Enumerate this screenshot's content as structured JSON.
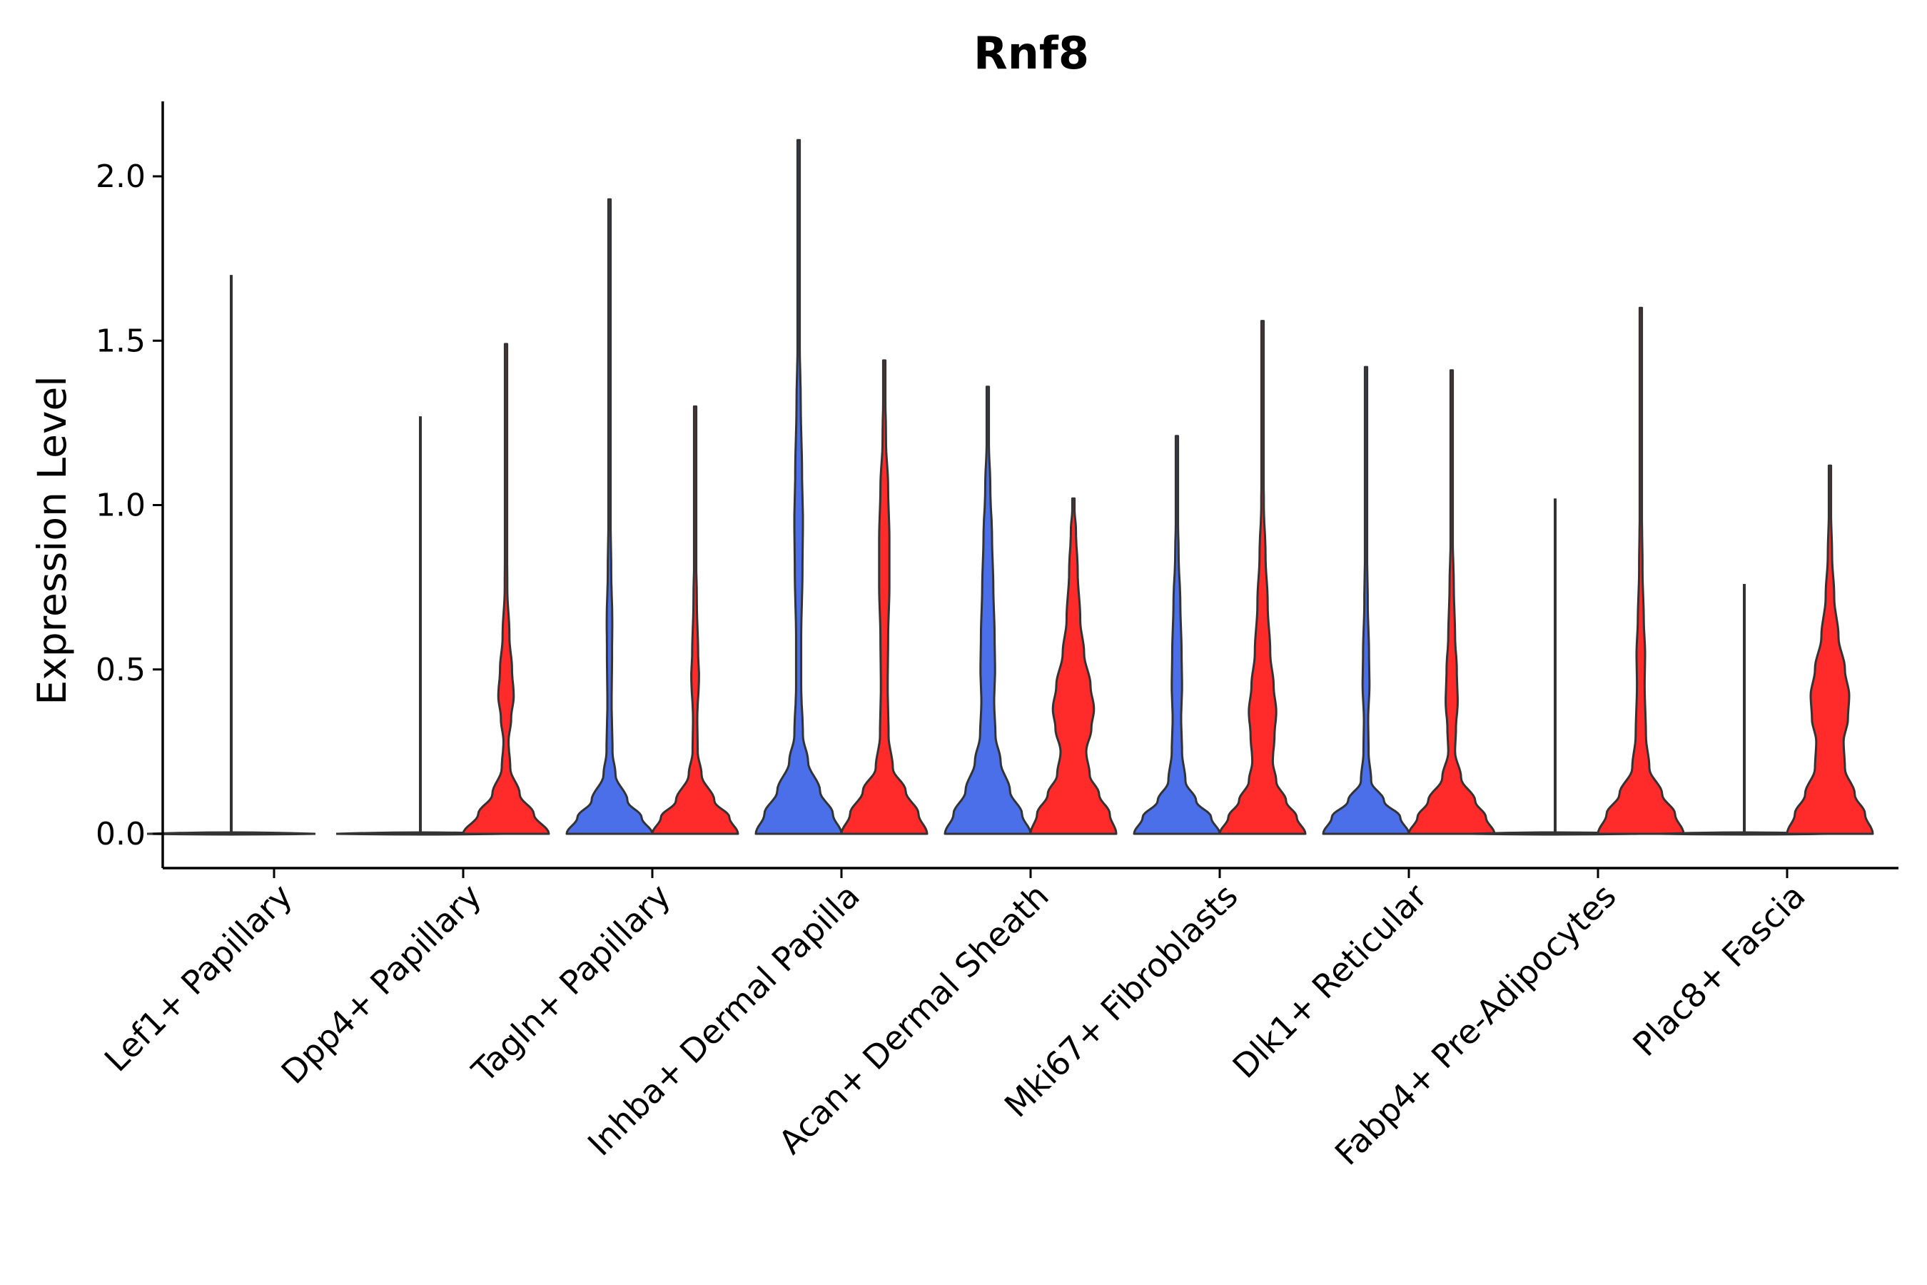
{
  "chart_data": {
    "type": "violin",
    "title": "Rnf8",
    "xlabel": "",
    "ylabel": "Expression Level",
    "ylim": [
      -0.105,
      2.22
    ],
    "yticks": [
      "0.0",
      "0.5",
      "1.0",
      "1.5",
      "2.0"
    ],
    "legend": "none",
    "series_colors": {
      "group1": "#4a6fe8",
      "group2": "#ff2a2a"
    },
    "categories": [
      "Lef1+ Papillary",
      "Dpp4+ Papillary",
      "Tagln+ Papillary",
      "Inhba+ Dermal Papilla",
      "Acan+ Dermal Sheath",
      "Mki67+ Fibroblasts",
      "Dlk1+ Reticular",
      "Fabp4+ Pre-Adipocytes",
      "Plac8+ Fascia"
    ],
    "violins": [
      {
        "category": "Lef1+ Papillary",
        "group": "group1",
        "max": 1.7,
        "flat": true
      },
      {
        "category": "Dpp4+ Papillary",
        "group": "group1",
        "max": 1.27,
        "flat": true
      },
      {
        "category": "Dpp4+ Papillary",
        "group": "group2",
        "max": 1.49,
        "profile": [
          [
            0,
            1.0
          ],
          [
            0.06,
            0.65
          ],
          [
            0.12,
            0.32
          ],
          [
            0.2,
            0.1
          ],
          [
            0.28,
            0.06
          ],
          [
            0.35,
            0.12
          ],
          [
            0.42,
            0.18
          ],
          [
            0.5,
            0.14
          ],
          [
            0.6,
            0.08
          ],
          [
            0.75,
            0.03
          ],
          [
            0.95,
            0.015
          ],
          [
            1.2,
            0.006
          ],
          [
            1.49,
            0.003
          ]
        ]
      },
      {
        "category": "Tagln+ Papillary",
        "group": "group1",
        "max": 1.93,
        "profile": [
          [
            0,
            1.0
          ],
          [
            0.05,
            0.75
          ],
          [
            0.1,
            0.42
          ],
          [
            0.18,
            0.14
          ],
          [
            0.25,
            0.07
          ],
          [
            0.4,
            0.05
          ],
          [
            0.55,
            0.06
          ],
          [
            0.65,
            0.065
          ],
          [
            0.8,
            0.04
          ],
          [
            1.0,
            0.02
          ],
          [
            1.2,
            0.01
          ],
          [
            1.5,
            0.005
          ],
          [
            1.93,
            0.003
          ]
        ]
      },
      {
        "category": "Tagln+ Papillary",
        "group": "group2",
        "max": 1.3,
        "profile": [
          [
            0,
            1.0
          ],
          [
            0.05,
            0.8
          ],
          [
            0.1,
            0.45
          ],
          [
            0.18,
            0.15
          ],
          [
            0.25,
            0.06
          ],
          [
            0.35,
            0.05
          ],
          [
            0.48,
            0.09
          ],
          [
            0.55,
            0.07
          ],
          [
            0.7,
            0.04
          ],
          [
            0.9,
            0.015
          ],
          [
            1.1,
            0.007
          ],
          [
            1.3,
            0.003
          ]
        ]
      },
      {
        "category": "Inhba+ Dermal Papilla",
        "group": "group1",
        "max": 2.11,
        "profile": [
          [
            0,
            1.0
          ],
          [
            0.06,
            0.8
          ],
          [
            0.13,
            0.5
          ],
          [
            0.22,
            0.22
          ],
          [
            0.3,
            0.1
          ],
          [
            0.45,
            0.06
          ],
          [
            0.6,
            0.06
          ],
          [
            0.8,
            0.09
          ],
          [
            0.95,
            0.1
          ],
          [
            1.1,
            0.08
          ],
          [
            1.3,
            0.05
          ],
          [
            1.5,
            0.025
          ],
          [
            1.8,
            0.01
          ],
          [
            2.11,
            0.003
          ]
        ]
      },
      {
        "category": "Inhba+ Dermal Papilla",
        "group": "group2",
        "max": 1.44,
        "profile": [
          [
            0,
            1.0
          ],
          [
            0.06,
            0.8
          ],
          [
            0.13,
            0.5
          ],
          [
            0.2,
            0.2
          ],
          [
            0.3,
            0.1
          ],
          [
            0.45,
            0.08
          ],
          [
            0.6,
            0.09
          ],
          [
            0.75,
            0.12
          ],
          [
            0.9,
            0.12
          ],
          [
            1.05,
            0.09
          ],
          [
            1.2,
            0.04
          ],
          [
            1.44,
            0.003
          ]
        ]
      },
      {
        "category": "Acan+ Dermal Sheath",
        "group": "group1",
        "max": 1.36,
        "profile": [
          [
            0,
            1.0
          ],
          [
            0.06,
            0.8
          ],
          [
            0.13,
            0.52
          ],
          [
            0.22,
            0.3
          ],
          [
            0.3,
            0.18
          ],
          [
            0.4,
            0.15
          ],
          [
            0.5,
            0.17
          ],
          [
            0.6,
            0.16
          ],
          [
            0.75,
            0.13
          ],
          [
            0.9,
            0.1
          ],
          [
            1.05,
            0.06
          ],
          [
            1.2,
            0.025
          ],
          [
            1.36,
            0.003
          ]
        ]
      },
      {
        "category": "Acan+ Dermal Sheath",
        "group": "group2",
        "max": 1.02,
        "profile": [
          [
            0,
            1.0
          ],
          [
            0.06,
            0.85
          ],
          [
            0.12,
            0.6
          ],
          [
            0.18,
            0.38
          ],
          [
            0.25,
            0.3
          ],
          [
            0.32,
            0.42
          ],
          [
            0.38,
            0.48
          ],
          [
            0.45,
            0.4
          ],
          [
            0.55,
            0.25
          ],
          [
            0.65,
            0.16
          ],
          [
            0.8,
            0.1
          ],
          [
            0.92,
            0.06
          ],
          [
            1.02,
            0.003
          ]
        ]
      },
      {
        "category": "Mki67+ Fibroblasts",
        "group": "group1",
        "max": 1.21,
        "profile": [
          [
            0,
            1.0
          ],
          [
            0.05,
            0.8
          ],
          [
            0.1,
            0.45
          ],
          [
            0.16,
            0.2
          ],
          [
            0.25,
            0.12
          ],
          [
            0.35,
            0.1
          ],
          [
            0.45,
            0.12
          ],
          [
            0.55,
            0.11
          ],
          [
            0.7,
            0.08
          ],
          [
            0.85,
            0.04
          ],
          [
            1.0,
            0.015
          ],
          [
            1.21,
            0.003
          ]
        ]
      },
      {
        "category": "Mki67+ Fibroblasts",
        "group": "group2",
        "max": 1.56,
        "profile": [
          [
            0,
            1.0
          ],
          [
            0.05,
            0.8
          ],
          [
            0.1,
            0.55
          ],
          [
            0.16,
            0.32
          ],
          [
            0.22,
            0.24
          ],
          [
            0.3,
            0.28
          ],
          [
            0.37,
            0.32
          ],
          [
            0.45,
            0.26
          ],
          [
            0.55,
            0.18
          ],
          [
            0.7,
            0.12
          ],
          [
            0.85,
            0.07
          ],
          [
            1.0,
            0.03
          ],
          [
            1.2,
            0.012
          ],
          [
            1.56,
            0.003
          ]
        ]
      },
      {
        "category": "Dlk1+ Reticular",
        "group": "group1",
        "max": 1.42,
        "profile": [
          [
            0,
            1.0
          ],
          [
            0.05,
            0.8
          ],
          [
            0.1,
            0.42
          ],
          [
            0.16,
            0.12
          ],
          [
            0.25,
            0.06
          ],
          [
            0.35,
            0.05
          ],
          [
            0.45,
            0.08
          ],
          [
            0.55,
            0.07
          ],
          [
            0.7,
            0.04
          ],
          [
            0.9,
            0.02
          ],
          [
            1.1,
            0.01
          ],
          [
            1.42,
            0.003
          ]
        ]
      },
      {
        "category": "Dlk1+ Reticular",
        "group": "group2",
        "max": 1.41,
        "profile": [
          [
            0,
            1.0
          ],
          [
            0.05,
            0.8
          ],
          [
            0.1,
            0.55
          ],
          [
            0.17,
            0.22
          ],
          [
            0.25,
            0.08
          ],
          [
            0.32,
            0.1
          ],
          [
            0.4,
            0.14
          ],
          [
            0.5,
            0.12
          ],
          [
            0.6,
            0.08
          ],
          [
            0.75,
            0.05
          ],
          [
            0.9,
            0.025
          ],
          [
            1.1,
            0.01
          ],
          [
            1.41,
            0.003
          ]
        ]
      },
      {
        "category": "Fabp4+ Pre-Adipocytes",
        "group": "group1",
        "max": 1.02,
        "flat": true
      },
      {
        "category": "Fabp4+ Pre-Adipocytes",
        "group": "group2",
        "max": 1.6,
        "profile": [
          [
            0,
            1.0
          ],
          [
            0.06,
            0.8
          ],
          [
            0.12,
            0.5
          ],
          [
            0.2,
            0.2
          ],
          [
            0.3,
            0.12
          ],
          [
            0.45,
            0.09
          ],
          [
            0.55,
            0.1
          ],
          [
            0.65,
            0.07
          ],
          [
            0.8,
            0.04
          ],
          [
            1.0,
            0.025
          ],
          [
            1.2,
            0.015
          ],
          [
            1.4,
            0.012
          ],
          [
            1.6,
            0.003
          ]
        ]
      },
      {
        "category": "Plac8+ Fascia",
        "group": "group1",
        "max": 0.76,
        "flat": true
      },
      {
        "category": "Plac8+ Fascia",
        "group": "group2",
        "max": 1.12,
        "profile": [
          [
            0,
            1.0
          ],
          [
            0.06,
            0.82
          ],
          [
            0.12,
            0.58
          ],
          [
            0.2,
            0.35
          ],
          [
            0.28,
            0.32
          ],
          [
            0.35,
            0.42
          ],
          [
            0.42,
            0.45
          ],
          [
            0.5,
            0.35
          ],
          [
            0.6,
            0.2
          ],
          [
            0.72,
            0.1
          ],
          [
            0.85,
            0.05
          ],
          [
            1.0,
            0.02
          ],
          [
            1.12,
            0.003
          ]
        ]
      }
    ]
  }
}
